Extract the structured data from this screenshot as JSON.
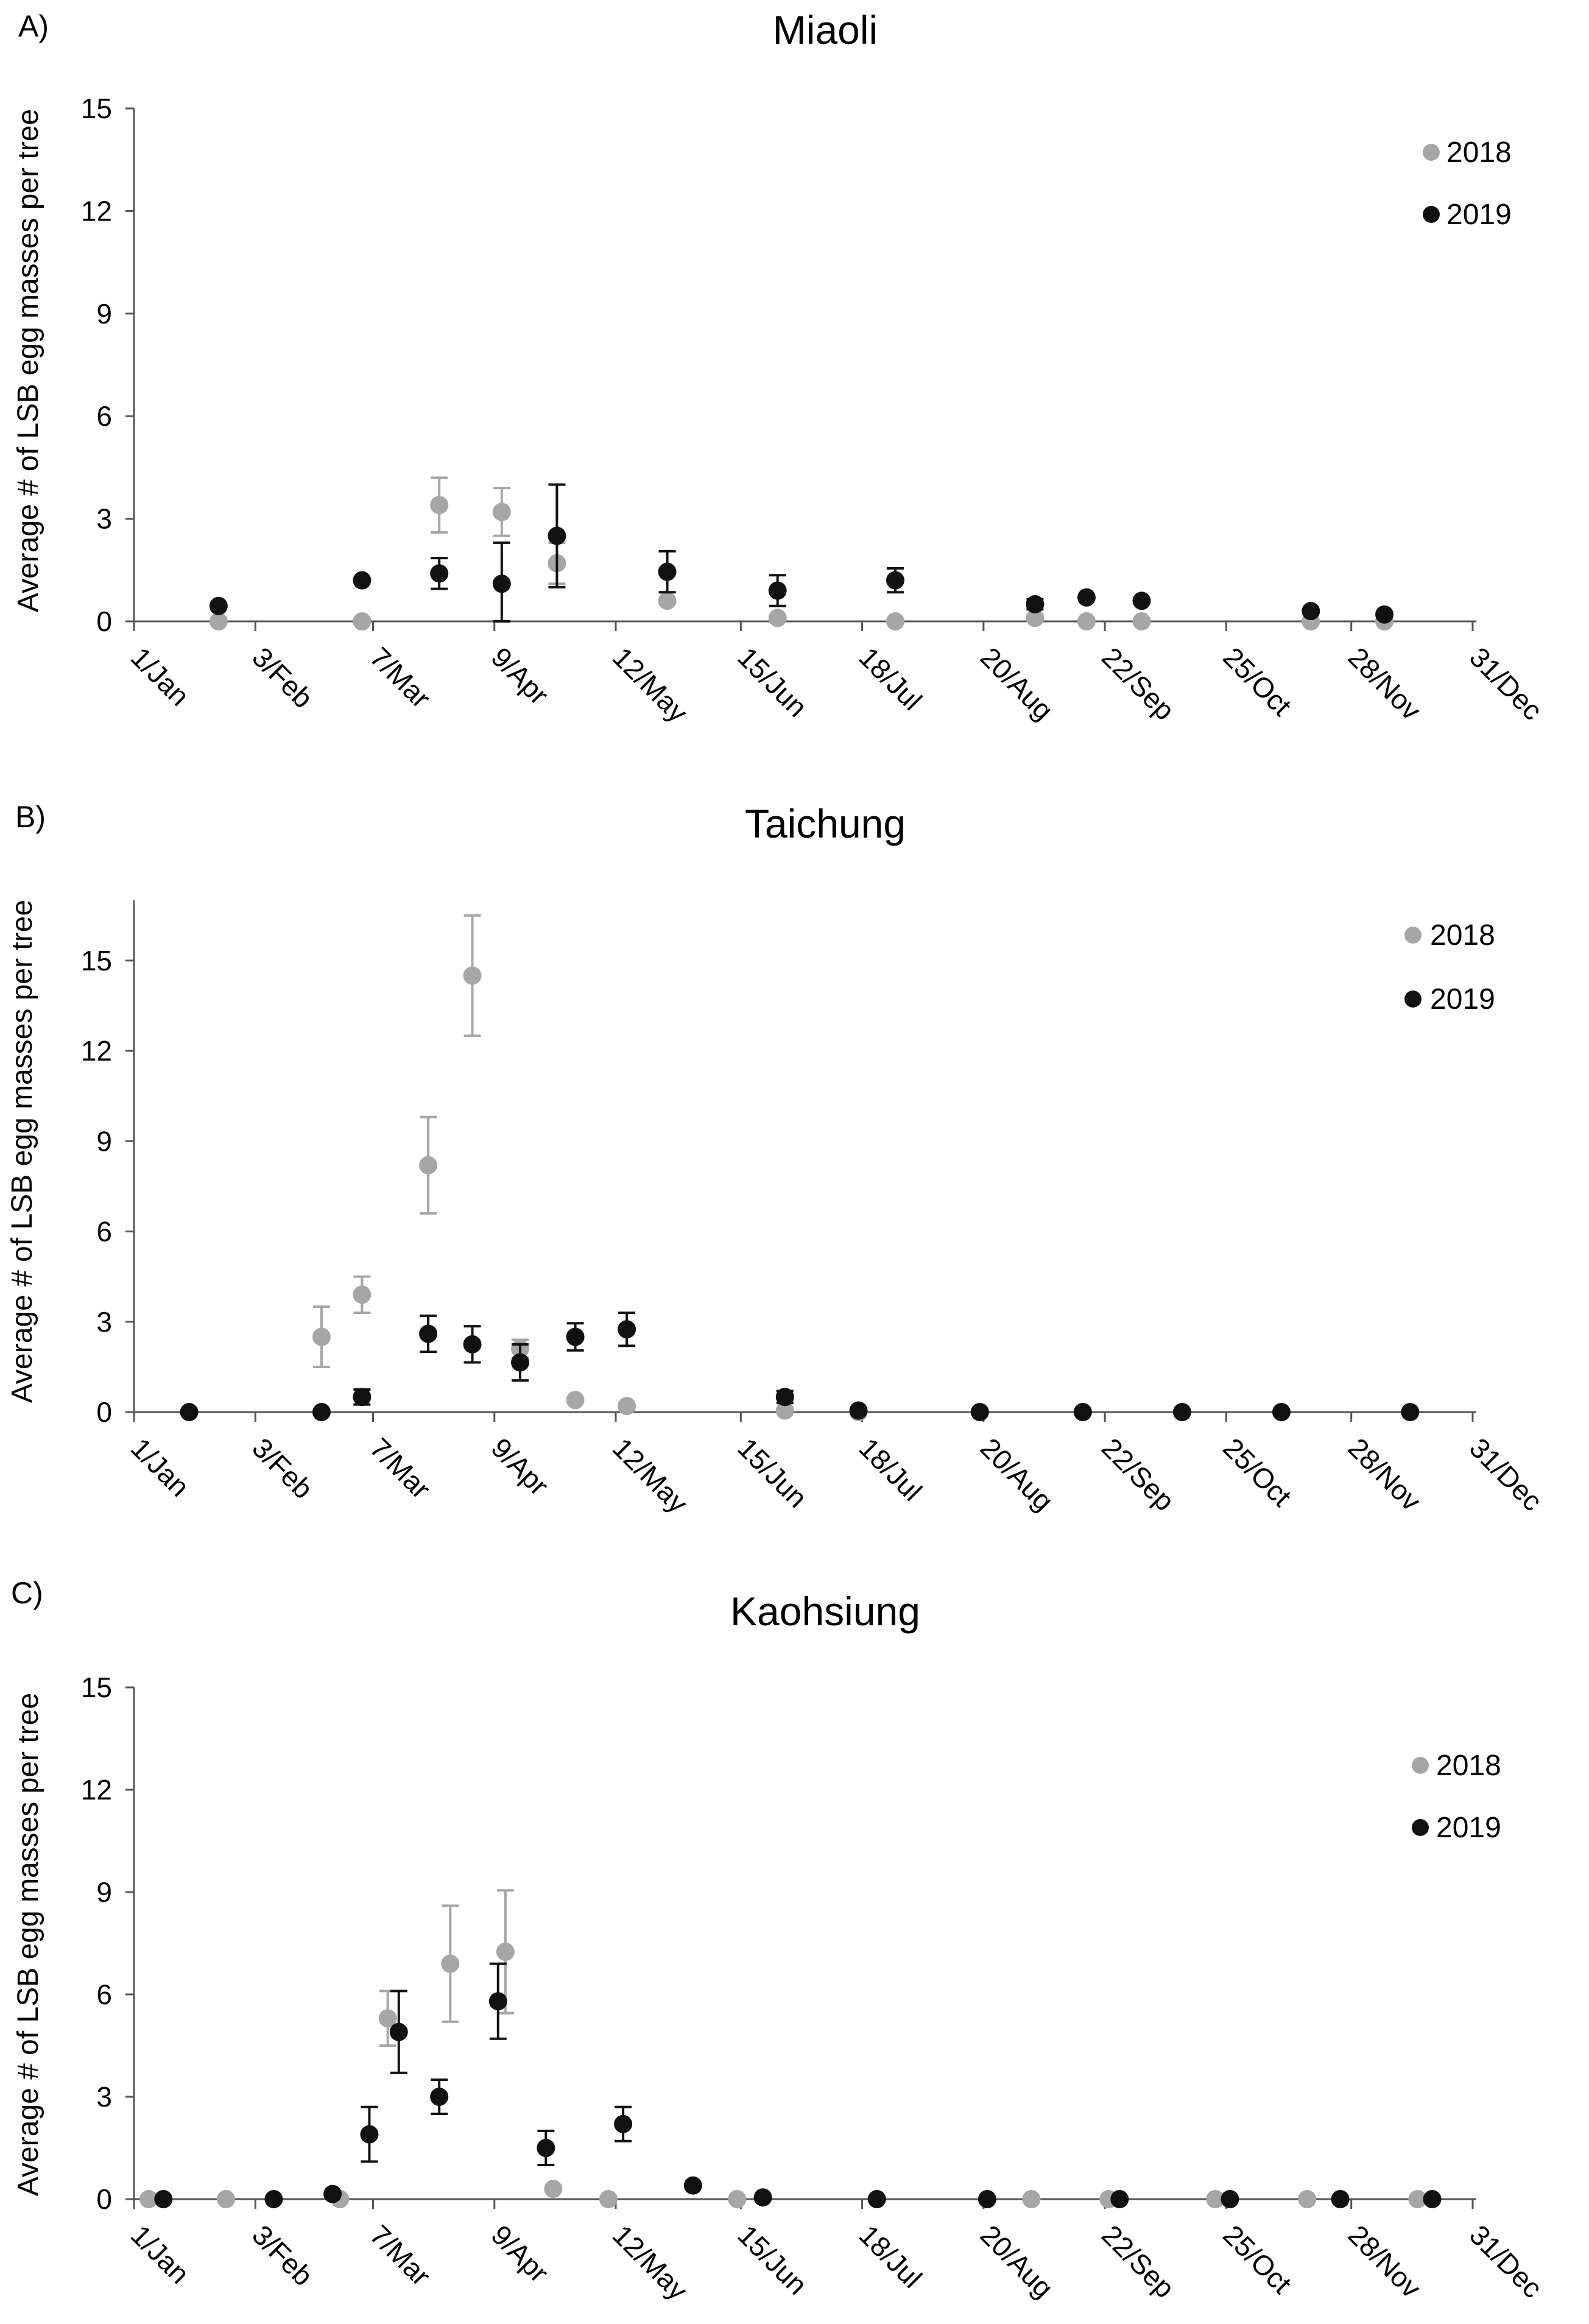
{
  "colors": {
    "2018": "#a6a6a6",
    "2019": "#111111",
    "axis": "#555555"
  },
  "chart_data": [
    {
      "type": "scatter",
      "panel_label": "A)",
      "title": "Miaoli",
      "ylabel": "Average # of LSB egg masses per tree",
      "xlabel": "",
      "xlim": [
        0,
        365
      ],
      "ylim": [
        0,
        15
      ],
      "yticks": [
        0,
        3,
        6,
        9,
        12,
        15
      ],
      "ytick_labels": [
        "0",
        "3",
        "6",
        "9",
        "12",
        "15"
      ],
      "xticks": [
        0,
        33,
        65,
        98,
        131,
        165,
        198,
        231,
        264,
        297,
        331,
        364
      ],
      "xtick_labels": [
        "1/Jan",
        "3/Feb",
        "7/Mar",
        "9/Apr",
        "12/May",
        "15/Jun",
        "18/Jul",
        "20/Aug",
        "22/Sep",
        "25/Oct",
        "28/Nov",
        "31/Dec"
      ],
      "legend": "top-right",
      "series": [
        {
          "name": "2018",
          "points": [
            {
              "x": 23,
              "y": 0
            },
            {
              "x": 62,
              "y": 0
            },
            {
              "x": 83,
              "y": 3.4,
              "err": 0.8
            },
            {
              "x": 100,
              "y": 3.2,
              "err": 0.7
            },
            {
              "x": 115,
              "y": 1.7,
              "err": 0.6
            },
            {
              "x": 145,
              "y": 0.6
            },
            {
              "x": 175,
              "y": 0.1
            },
            {
              "x": 207,
              "y": 0
            },
            {
              "x": 245,
              "y": 0.1
            },
            {
              "x": 259,
              "y": 0
            },
            {
              "x": 274,
              "y": 0
            },
            {
              "x": 320,
              "y": 0
            },
            {
              "x": 340,
              "y": 0
            }
          ]
        },
        {
          "name": "2019",
          "points": [
            {
              "x": 23,
              "y": 0.45
            },
            {
              "x": 62,
              "y": 1.2
            },
            {
              "x": 83,
              "y": 1.4,
              "err": 0.45
            },
            {
              "x": 100,
              "y": 1.1,
              "err": 1.2
            },
            {
              "x": 115,
              "y": 2.5,
              "err": 1.5
            },
            {
              "x": 145,
              "y": 1.45,
              "err": 0.6
            },
            {
              "x": 175,
              "y": 0.9,
              "err": 0.45
            },
            {
              "x": 207,
              "y": 1.2,
              "err": 0.35
            },
            {
              "x": 245,
              "y": 0.5,
              "err": 0.15
            },
            {
              "x": 259,
              "y": 0.7
            },
            {
              "x": 274,
              "y": 0.6
            },
            {
              "x": 320,
              "y": 0.3
            },
            {
              "x": 340,
              "y": 0.2
            }
          ]
        }
      ]
    },
    {
      "type": "scatter",
      "panel_label": "B)",
      "title": "Taichung",
      "ylabel": "Average # of LSB egg masses per tree",
      "xlabel": "",
      "xlim": [
        0,
        365
      ],
      "ylim": [
        0,
        17
      ],
      "yticks": [
        0,
        3,
        6,
        9,
        12,
        15
      ],
      "ytick_labels": [
        "0",
        "3",
        "6",
        "9",
        "12",
        "15"
      ],
      "xticks": [
        0,
        33,
        65,
        98,
        131,
        165,
        198,
        231,
        264,
        297,
        331,
        364
      ],
      "xtick_labels": [
        "1/Jan",
        "3/Feb",
        "7/Mar",
        "9/Apr",
        "12/May",
        "15/Jun",
        "18/Jul",
        "20/Aug",
        "22/Sep",
        "25/Oct",
        "28/Nov",
        "31/Dec"
      ],
      "legend": "top-right",
      "series": [
        {
          "name": "2018",
          "points": [
            {
              "x": 51,
              "y": 2.5,
              "err": 1.0
            },
            {
              "x": 62,
              "y": 3.9,
              "err": 0.6
            },
            {
              "x": 80,
              "y": 8.2,
              "err": 1.6
            },
            {
              "x": 92,
              "y": 14.5,
              "err": 2.0
            },
            {
              "x": 105,
              "y": 2.1,
              "err": 0.3
            },
            {
              "x": 120,
              "y": 0.4
            },
            {
              "x": 134,
              "y": 0.2
            },
            {
              "x": 177,
              "y": 0.05
            },
            {
              "x": 197,
              "y": 0
            }
          ]
        },
        {
          "name": "2019",
          "points": [
            {
              "x": 15,
              "y": 0
            },
            {
              "x": 51,
              "y": 0
            },
            {
              "x": 62,
              "y": 0.5,
              "err": 0.25
            },
            {
              "x": 80,
              "y": 2.6,
              "err": 0.6
            },
            {
              "x": 92,
              "y": 2.25,
              "err": 0.6
            },
            {
              "x": 105,
              "y": 1.65,
              "err": 0.6
            },
            {
              "x": 120,
              "y": 2.5,
              "err": 0.45
            },
            {
              "x": 134,
              "y": 2.75,
              "err": 0.55
            },
            {
              "x": 177,
              "y": 0.5,
              "err": 0.2
            },
            {
              "x": 197,
              "y": 0.05
            },
            {
              "x": 230,
              "y": 0
            },
            {
              "x": 258,
              "y": 0
            },
            {
              "x": 285,
              "y": 0
            },
            {
              "x": 312,
              "y": 0
            },
            {
              "x": 347,
              "y": 0
            }
          ]
        }
      ]
    },
    {
      "type": "scatter",
      "panel_label": "C)",
      "title": "Kaohsiung",
      "ylabel": "Average # of LSB egg masses per tree",
      "xlabel": "",
      "xlim": [
        0,
        365
      ],
      "ylim": [
        0,
        15
      ],
      "yticks": [
        0,
        3,
        6,
        9,
        12,
        15
      ],
      "ytick_labels": [
        "0",
        "3",
        "6",
        "9",
        "12",
        "15"
      ],
      "xticks": [
        0,
        33,
        65,
        98,
        131,
        165,
        198,
        231,
        264,
        297,
        331,
        364
      ],
      "xtick_labels": [
        "1/Jan",
        "3/Feb",
        "7/Mar",
        "9/Apr",
        "12/May",
        "15/Jun",
        "18/Jul",
        "20/Aug",
        "22/Sep",
        "25/Oct",
        "28/Nov",
        "31/Dec"
      ],
      "legend": "top-right",
      "series": [
        {
          "name": "2018",
          "points": [
            {
              "x": 4,
              "y": 0
            },
            {
              "x": 25,
              "y": 0
            },
            {
              "x": 56,
              "y": 0
            },
            {
              "x": 69,
              "y": 5.3,
              "err": 0.8
            },
            {
              "x": 86,
              "y": 6.9,
              "err": 1.7
            },
            {
              "x": 101,
              "y": 7.25,
              "err": 1.8
            },
            {
              "x": 114,
              "y": 0.3
            },
            {
              "x": 129,
              "y": 0
            },
            {
              "x": 164,
              "y": 0
            },
            {
              "x": 244,
              "y": 0
            },
            {
              "x": 265,
              "y": 0
            },
            {
              "x": 294,
              "y": 0
            },
            {
              "x": 319,
              "y": 0
            },
            {
              "x": 349,
              "y": 0
            }
          ]
        },
        {
          "name": "2019",
          "points": [
            {
              "x": 8,
              "y": 0
            },
            {
              "x": 38,
              "y": 0
            },
            {
              "x": 54,
              "y": 0.15
            },
            {
              "x": 64,
              "y": 1.9,
              "err": 0.8
            },
            {
              "x": 72,
              "y": 4.9,
              "err": 1.2
            },
            {
              "x": 83,
              "y": 3.0,
              "err": 0.5
            },
            {
              "x": 99,
              "y": 5.8,
              "err": 1.1
            },
            {
              "x": 112,
              "y": 1.5,
              "err": 0.5
            },
            {
              "x": 133,
              "y": 2.2,
              "err": 0.5
            },
            {
              "x": 152,
              "y": 0.4
            },
            {
              "x": 171,
              "y": 0.05
            },
            {
              "x": 202,
              "y": 0
            },
            {
              "x": 232,
              "y": 0
            },
            {
              "x": 268,
              "y": 0
            },
            {
              "x": 298,
              "y": 0
            },
            {
              "x": 328,
              "y": 0
            },
            {
              "x": 353,
              "y": 0
            }
          ]
        }
      ]
    }
  ]
}
